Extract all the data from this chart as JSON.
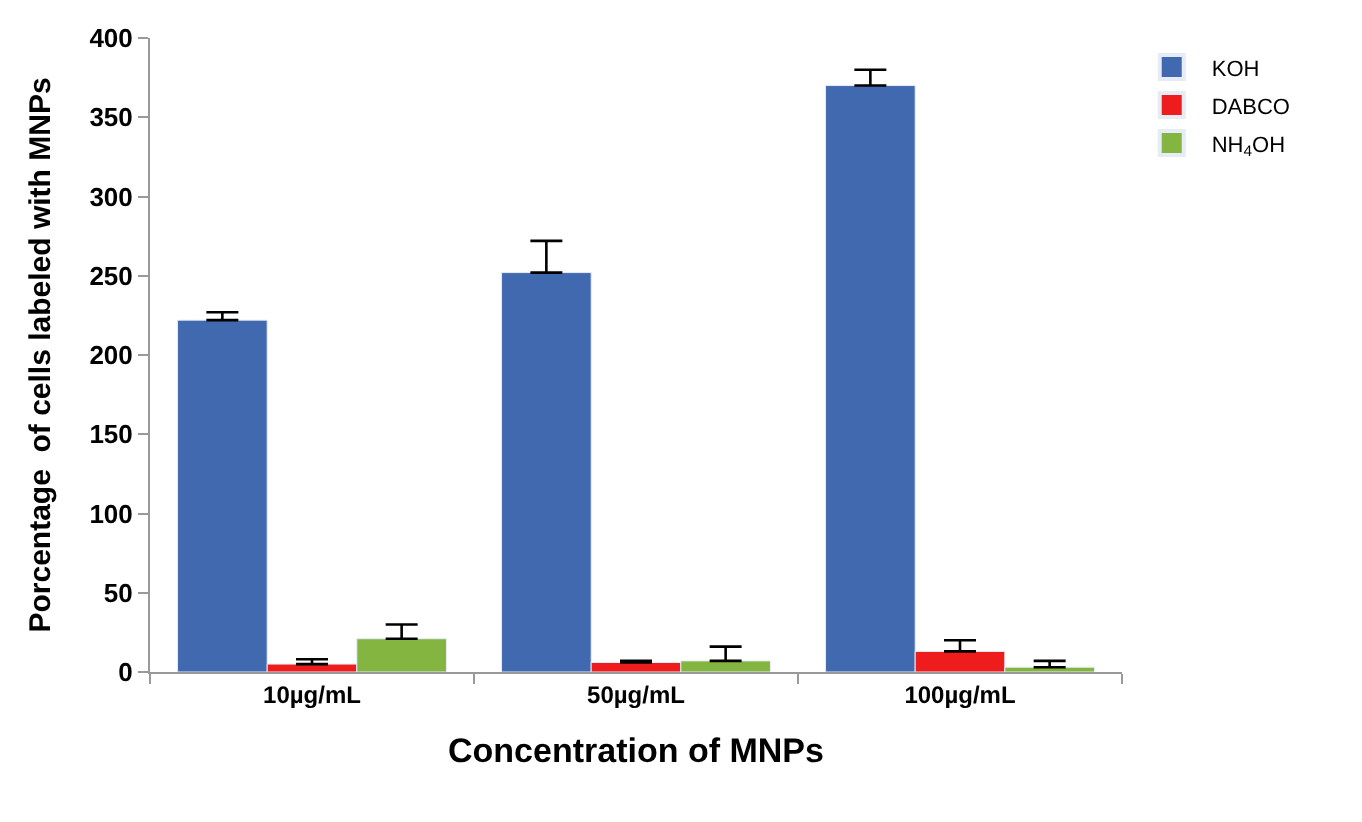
{
  "chart_data": {
    "type": "bar",
    "xlabel": "Concentration of MNPs",
    "ylabel": "Porcentage  of cells labeled with MNPs",
    "categories": [
      "10µg/mL",
      "50µg/mL",
      "100µg/mL"
    ],
    "series": [
      {
        "name": "KOH",
        "color": "#4169b0",
        "values": [
          222,
          252,
          370
        ],
        "errors": [
          [
            222,
            227
          ],
          [
            252,
            272
          ],
          [
            370,
            380
          ]
        ]
      },
      {
        "name": "DABCO",
        "color": "#ee1c1c",
        "values": [
          5,
          6,
          13
        ],
        "errors": [
          [
            5,
            8
          ],
          [
            6,
            7
          ],
          [
            13,
            20
          ]
        ]
      },
      {
        "name": "NH$_{4}$OH",
        "color": "#84b540",
        "values": [
          21,
          7,
          3
        ],
        "errors": [
          [
            21,
            30
          ],
          [
            7,
            16
          ],
          [
            3,
            7
          ]
        ]
      }
    ],
    "ylim": [
      0,
      400
    ],
    "yticks": [
      0,
      50,
      100,
      150,
      200,
      250,
      300,
      350,
      400
    ],
    "legend": "top right"
  }
}
